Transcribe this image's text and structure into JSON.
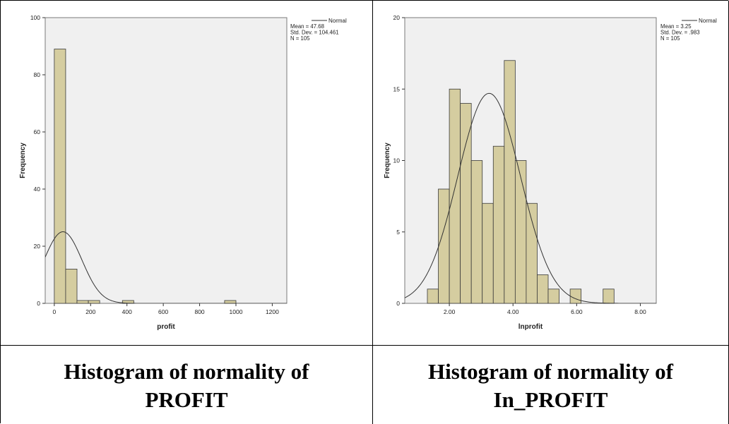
{
  "captions": [
    {
      "line1": "Histogram of normality of",
      "line2": "PROFIT"
    },
    {
      "line1": "Histogram of normality of",
      "line2": "In_PROFIT"
    }
  ],
  "colors": {
    "bar_fill": "#d5cda0",
    "bar_stroke": "#3a3a3a",
    "plot_bg": "#f0f0f0",
    "curve": "#333333"
  },
  "chart_data": [
    {
      "type": "bar",
      "xlabel": "profit",
      "ylabel": "Frequency",
      "xlim": [
        -50,
        1280
      ],
      "ylim": [
        0,
        100
      ],
      "x_ticks": [
        "0",
        "200",
        "400",
        "600",
        "800",
        "1000",
        "1200"
      ],
      "x_tick_values": [
        0,
        200,
        400,
        600,
        800,
        1000,
        1200
      ],
      "y_ticks": [
        "0",
        "20",
        "40",
        "60",
        "80",
        "100"
      ],
      "y_tick_values": [
        0,
        20,
        40,
        60,
        80,
        100
      ],
      "bin_width": 62.5,
      "bins": [
        {
          "start": 0,
          "count": 89
        },
        {
          "start": 62.5,
          "count": 12
        },
        {
          "start": 125,
          "count": 1
        },
        {
          "start": 187.5,
          "count": 1
        },
        {
          "start": 375,
          "count": 1
        },
        {
          "start": 937.5,
          "count": 1
        }
      ],
      "legend": {
        "label": "Normal",
        "lines": [
          "Mean = 47.68",
          "Std. Dev. = 104.461",
          "N = 105"
        ]
      },
      "normal": {
        "mean": 47.68,
        "sd": 104.461,
        "n": 105
      }
    },
    {
      "type": "bar",
      "xlabel": "lnprofit",
      "ylabel": "Frequency",
      "xlim": [
        0.6,
        8.5
      ],
      "ylim": [
        0,
        20
      ],
      "x_ticks": [
        "2.00",
        "4.00",
        "6.00",
        "8.00"
      ],
      "x_tick_values": [
        2,
        4,
        6,
        8
      ],
      "y_ticks": [
        "0",
        "5",
        "10",
        "15",
        "20"
      ],
      "y_tick_values": [
        0,
        5,
        10,
        15,
        20
      ],
      "bin_width": 0.345,
      "bins": [
        {
          "start": 1.31,
          "count": 1
        },
        {
          "start": 1.655,
          "count": 8
        },
        {
          "start": 2.0,
          "count": 15
        },
        {
          "start": 2.345,
          "count": 14
        },
        {
          "start": 2.69,
          "count": 10
        },
        {
          "start": 3.035,
          "count": 7
        },
        {
          "start": 3.38,
          "count": 11
        },
        {
          "start": 3.725,
          "count": 17
        },
        {
          "start": 4.07,
          "count": 10
        },
        {
          "start": 4.415,
          "count": 7
        },
        {
          "start": 4.76,
          "count": 2
        },
        {
          "start": 5.105,
          "count": 1
        },
        {
          "start": 5.795,
          "count": 1
        },
        {
          "start": 6.83,
          "count": 1
        }
      ],
      "legend": {
        "label": "Normal",
        "lines": [
          "Mean = 3.25",
          "Std. Dev. = .983",
          "N = 105"
        ]
      },
      "normal": {
        "mean": 3.25,
        "sd": 0.983,
        "n": 105
      }
    }
  ]
}
